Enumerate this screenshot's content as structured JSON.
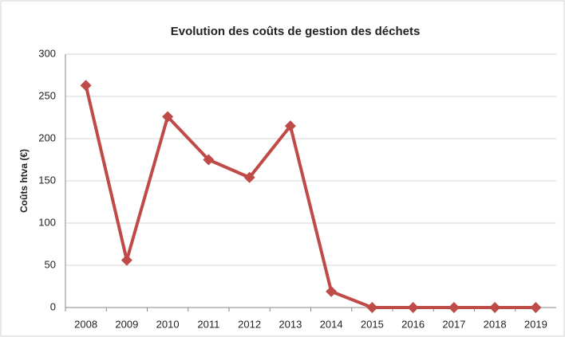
{
  "chart_data": {
    "type": "line",
    "title": "Evolution des coûts de gestion des déchets",
    "y_label": "Coûts htva (€)",
    "categories": [
      "2008",
      "2009",
      "2010",
      "2011",
      "2012",
      "2013",
      "2014",
      "2015",
      "2016",
      "2017",
      "2018",
      "2019"
    ],
    "series": [
      {
        "name": "Coûts htva",
        "color": "#be4b48",
        "values": [
          263,
          56,
          226,
          175,
          154,
          215,
          19,
          0,
          0,
          0,
          0,
          0
        ]
      }
    ],
    "ylim": [
      0,
      300
    ],
    "yticks": [
      0,
      50,
      100,
      150,
      200,
      250,
      300
    ],
    "grid": true
  }
}
